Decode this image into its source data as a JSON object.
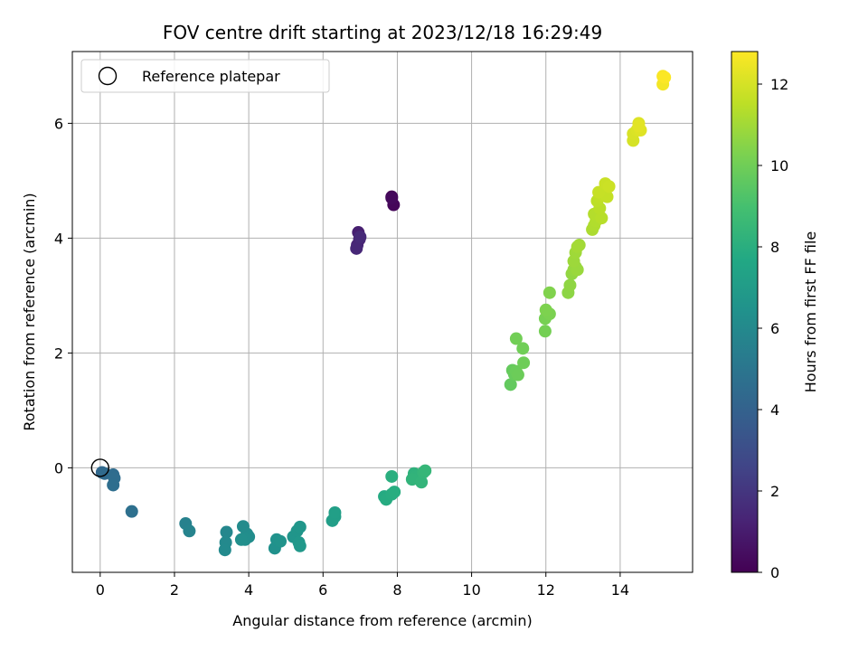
{
  "chart_data": {
    "type": "scatter",
    "title": "FOV centre drift starting at 2023/12/18 16:29:49",
    "xlabel": "Angular distance from reference (arcmin)",
    "ylabel": "Rotation from reference (arcmin)",
    "xlim": [
      -0.75,
      15.95
    ],
    "ylim": [
      -1.82,
      7.25
    ],
    "xticks": [
      0,
      2,
      4,
      6,
      8,
      10,
      12,
      14
    ],
    "yticks": [
      0,
      2,
      4,
      6
    ],
    "grid": true,
    "legend": {
      "placement": "top-left",
      "entries": [
        "Reference platepar"
      ]
    },
    "reference_point": {
      "x": 0,
      "y": 0
    },
    "colorbar": {
      "label": "Hours from first FF file",
      "range": [
        0,
        12.8
      ],
      "ticks": [
        0,
        2,
        4,
        6,
        8,
        10,
        12
      ],
      "colormap": "viridis"
    },
    "points": [
      [
        7.85,
        4.72,
        0.0
      ],
      [
        7.9,
        4.58,
        0.2
      ],
      [
        7.85,
        4.7,
        0.3
      ],
      [
        6.95,
        4.1,
        1.1
      ],
      [
        6.98,
        3.98,
        1.2
      ],
      [
        6.92,
        3.88,
        1.3
      ],
      [
        6.9,
        3.82,
        1.4
      ],
      [
        7.0,
        4.02,
        1.5
      ],
      [
        0.05,
        -0.08,
        4.3
      ],
      [
        0.12,
        -0.1,
        4.4
      ],
      [
        0.35,
        -0.12,
        4.5
      ],
      [
        0.38,
        -0.18,
        4.55
      ],
      [
        0.35,
        -0.3,
        4.6
      ],
      [
        0.85,
        -0.76,
        4.7
      ],
      [
        2.3,
        -0.97,
        5.6
      ],
      [
        2.4,
        -1.1,
        5.7
      ],
      [
        3.4,
        -1.12,
        5.9
      ],
      [
        3.38,
        -1.3,
        6.0
      ],
      [
        3.36,
        -1.43,
        6.05
      ],
      [
        3.85,
        -1.02,
        6.1
      ],
      [
        3.95,
        -1.15,
        6.15
      ],
      [
        4.0,
        -1.2,
        6.2
      ],
      [
        3.9,
        -1.25,
        6.25
      ],
      [
        3.8,
        -1.25,
        6.3
      ],
      [
        4.7,
        -1.4,
        6.4
      ],
      [
        4.75,
        -1.25,
        6.45
      ],
      [
        4.85,
        -1.28,
        6.5
      ],
      [
        5.2,
        -1.2,
        6.6
      ],
      [
        5.3,
        -1.1,
        6.65
      ],
      [
        5.38,
        -1.03,
        6.7
      ],
      [
        5.35,
        -1.3,
        6.75
      ],
      [
        5.38,
        -1.36,
        6.8
      ],
      [
        6.25,
        -0.92,
        7.1
      ],
      [
        6.32,
        -0.85,
        7.15
      ],
      [
        6.32,
        -0.78,
        7.2
      ],
      [
        7.65,
        -0.5,
        7.8
      ],
      [
        7.7,
        -0.55,
        7.85
      ],
      [
        7.85,
        -0.46,
        7.9
      ],
      [
        7.92,
        -0.42,
        7.95
      ],
      [
        7.85,
        -0.15,
        8.0
      ],
      [
        8.45,
        -0.1,
        8.2
      ],
      [
        8.5,
        -0.15,
        8.25
      ],
      [
        8.4,
        -0.2,
        8.3
      ],
      [
        8.65,
        -0.25,
        8.35
      ],
      [
        8.7,
        -0.08,
        8.4
      ],
      [
        8.75,
        -0.05,
        8.45
      ],
      [
        11.05,
        1.45,
        9.7
      ],
      [
        11.1,
        1.7,
        9.75
      ],
      [
        11.15,
        1.63,
        9.8
      ],
      [
        11.2,
        1.68,
        9.85
      ],
      [
        11.25,
        1.62,
        9.9
      ],
      [
        11.4,
        1.83,
        9.95
      ],
      [
        11.38,
        2.08,
        10.0
      ],
      [
        11.2,
        2.25,
        10.05
      ],
      [
        11.98,
        2.38,
        10.1
      ],
      [
        11.98,
        2.6,
        10.15
      ],
      [
        12.05,
        2.7,
        10.2
      ],
      [
        12.1,
        2.68,
        10.25
      ],
      [
        12.0,
        2.75,
        10.3
      ],
      [
        12.1,
        3.05,
        10.35
      ],
      [
        12.6,
        3.05,
        10.6
      ],
      [
        12.65,
        3.18,
        10.65
      ],
      [
        12.7,
        3.38,
        10.7
      ],
      [
        12.75,
        3.45,
        10.75
      ],
      [
        12.8,
        3.5,
        10.8
      ],
      [
        12.85,
        3.45,
        10.85
      ],
      [
        12.75,
        3.6,
        10.9
      ],
      [
        12.8,
        3.75,
        10.95
      ],
      [
        12.9,
        3.88,
        11.0
      ],
      [
        12.85,
        3.85,
        11.05
      ],
      [
        13.25,
        4.15,
        11.2
      ],
      [
        13.3,
        4.22,
        11.25
      ],
      [
        13.35,
        4.3,
        11.3
      ],
      [
        13.3,
        4.42,
        11.35
      ],
      [
        13.5,
        4.35,
        11.4
      ],
      [
        13.45,
        4.52,
        11.45
      ],
      [
        13.38,
        4.65,
        11.5
      ],
      [
        13.45,
        4.72,
        11.55
      ],
      [
        13.55,
        4.75,
        11.6
      ],
      [
        13.65,
        4.72,
        11.65
      ],
      [
        13.42,
        4.8,
        11.7
      ],
      [
        13.6,
        4.95,
        11.75
      ],
      [
        13.7,
        4.9,
        11.8
      ],
      [
        14.35,
        5.7,
        12.0
      ],
      [
        14.35,
        5.82,
        12.05
      ],
      [
        14.45,
        5.88,
        12.1
      ],
      [
        14.5,
        6.0,
        12.15
      ],
      [
        14.55,
        5.88,
        12.2
      ],
      [
        14.5,
        5.95,
        12.25
      ],
      [
        15.15,
        6.68,
        12.6
      ],
      [
        15.15,
        6.82,
        12.7
      ],
      [
        15.2,
        6.8,
        12.75
      ]
    ]
  }
}
